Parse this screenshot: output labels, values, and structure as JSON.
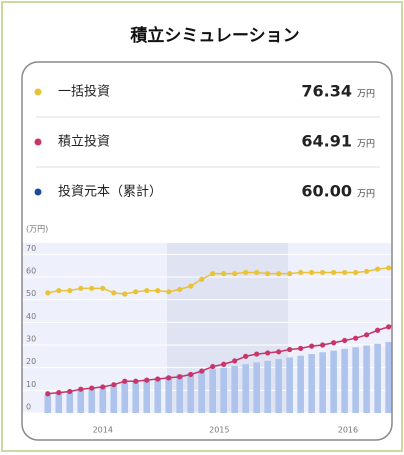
{
  "header": {
    "title": "積立シミュレーション"
  },
  "summary": [
    {
      "label": "一括投資",
      "value": "76.34",
      "unit": "万円",
      "marker_color": "#e8c33a"
    },
    {
      "label": "積立投資",
      "value": "64.91",
      "unit": "万円",
      "marker_color": "#c8356a"
    },
    {
      "label": "投資元本（累計）",
      "value": "60.00",
      "unit": "万円",
      "marker_color": "#1f4a9c"
    }
  ],
  "chart_data": {
    "type": "line",
    "y_label": "(万円)",
    "categories": [
      null,
      null,
      null,
      null,
      null,
      null,
      null,
      null,
      null,
      null,
      null,
      null,
      null,
      null,
      null,
      null,
      null,
      null,
      null,
      null,
      null,
      null,
      null,
      null,
      null,
      null,
      null,
      null,
      null,
      null,
      null,
      null,
      null
    ],
    "xlim": [
      -1.8,
      32.4
    ],
    "xticks": [
      {
        "value": 5,
        "label": "2014"
      },
      {
        "value": 15.6,
        "label": "2015"
      },
      {
        "value": 27.3,
        "label": "2016"
      }
    ],
    "ylim": [
      0,
      75
    ],
    "yticks": [
      0,
      10,
      20,
      30,
      40,
      50,
      60,
      70
    ],
    "grid": true,
    "series": [
      {
        "name": "一括投資",
        "type": "line",
        "color": "#e8c33a",
        "values": [
          53,
          54,
          54,
          55,
          55,
          55,
          53,
          52.5,
          53.5,
          54,
          54,
          53.5,
          54.5,
          56,
          59,
          61.5,
          61.5,
          61.5,
          62,
          62,
          61.5,
          61.5,
          61.5,
          62,
          62,
          62,
          62,
          62,
          62,
          62.5,
          63.5,
          64,
          63.5
        ]
      },
      {
        "name": "積立投資",
        "type": "line",
        "color": "#c8356a",
        "values": [
          8.5,
          9,
          9.5,
          10.5,
          11,
          11.5,
          12.5,
          14,
          14,
          14.5,
          15,
          15.5,
          16,
          17,
          18.5,
          20.5,
          21.5,
          23,
          25,
          26,
          26.5,
          27,
          28,
          28.5,
          29.5,
          30,
          31,
          32,
          33,
          34.5,
          36.5,
          38,
          40
        ]
      },
      {
        "name": "投資元本（累計）",
        "type": "bar",
        "color": "#aec4ec",
        "values": [
          8,
          8.8,
          9.5,
          10.3,
          11,
          11.8,
          12.5,
          13.3,
          14,
          14.8,
          15.5,
          16.3,
          17,
          17.8,
          18.5,
          19.3,
          20,
          20.8,
          21.5,
          22.3,
          23,
          23.8,
          24.5,
          25.3,
          26,
          26.8,
          27.5,
          28.3,
          29,
          29.8,
          30.5,
          31.3,
          32
        ]
      }
    ]
  }
}
